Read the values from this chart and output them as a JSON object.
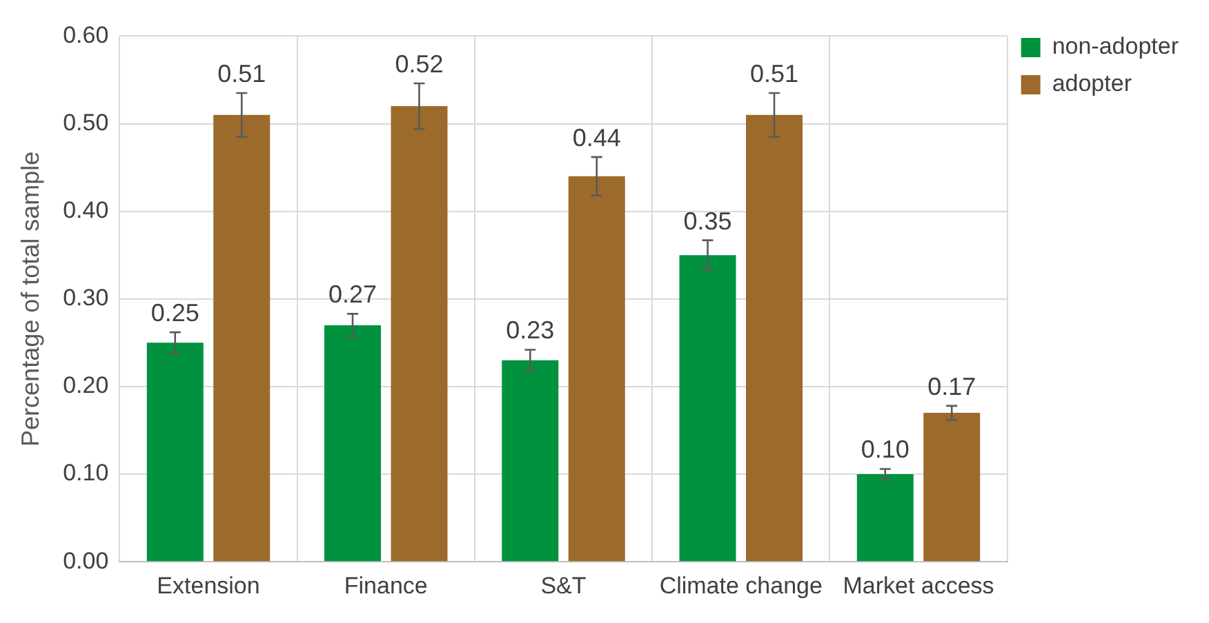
{
  "chart_data": {
    "type": "bar",
    "ylabel": "Percentage of total sample",
    "categories": [
      "Extension",
      "Finance",
      "S&T",
      "Climate change",
      "Market access"
    ],
    "series": [
      {
        "name": "non-adopter",
        "color": "#00923f",
        "values": [
          0.25,
          0.27,
          0.23,
          0.35,
          0.1
        ],
        "value_labels": [
          "0.25",
          "0.27",
          "0.23",
          "0.35",
          "0.10"
        ],
        "errors": [
          0.012,
          0.013,
          0.012,
          0.017,
          0.006
        ]
      },
      {
        "name": "adopter",
        "color": "#9c6a2a",
        "values": [
          0.51,
          0.52,
          0.44,
          0.51,
          0.17
        ],
        "value_labels": [
          "0.51",
          "0.52",
          "0.44",
          "0.51",
          "0.17"
        ],
        "errors": [
          0.025,
          0.026,
          0.022,
          0.025,
          0.008
        ]
      }
    ],
    "ylim": [
      0,
      0.6
    ],
    "yticks": [
      {
        "value": 0,
        "label": "0.00"
      },
      {
        "value": 0.1,
        "label": "0.10"
      },
      {
        "value": 0.2,
        "label": "0.20"
      },
      {
        "value": 0.3,
        "label": "0.30"
      },
      {
        "value": 0.4,
        "label": "0.40"
      },
      {
        "value": 0.5,
        "label": "0.50"
      },
      {
        "value": 0.6,
        "label": "0.60"
      }
    ],
    "grid": true,
    "legend": "top right"
  }
}
